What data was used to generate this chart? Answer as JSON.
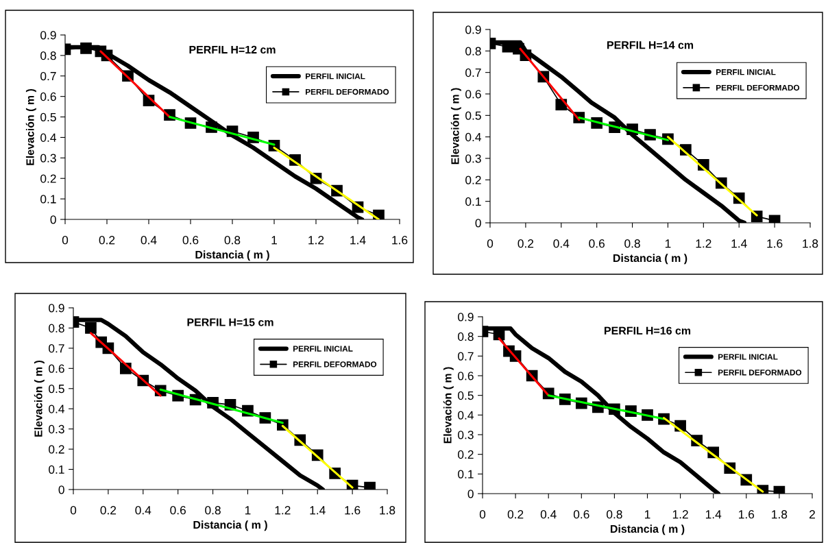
{
  "chart_data": [
    {
      "type": "line",
      "title": "PERFIL H=12 cm",
      "xlabel": "Distancia ( m )",
      "ylabel": "Elevación ( m )",
      "xlim": [
        0,
        1.6
      ],
      "xticks": [
        0,
        0.2,
        0.4,
        0.6,
        0.8,
        1,
        1.2,
        1.4,
        1.6
      ],
      "ylim": [
        0,
        0.9
      ],
      "yticks": [
        0,
        0.1,
        0.2,
        0.3,
        0.4,
        0.5,
        0.6,
        0.7,
        0.8,
        0.9
      ],
      "grid": false,
      "legend": "top right",
      "series": [
        {
          "name": "PERFIL INICIAL",
          "color": "#000000",
          "marker": "none",
          "x": [
            0,
            0.16,
            0.2,
            0.3,
            0.4,
            0.5,
            0.6,
            0.7,
            0.8,
            0.9,
            1.0,
            1.1,
            1.2,
            1.3,
            1.4,
            1.42
          ],
          "values": [
            0.84,
            0.84,
            0.81,
            0.75,
            0.68,
            0.62,
            0.55,
            0.48,
            0.41,
            0.35,
            0.28,
            0.21,
            0.15,
            0.08,
            0.01,
            0
          ]
        },
        {
          "name": "PERFIL DEFORMADO",
          "color": "#000000",
          "marker": "square",
          "x": [
            0,
            0.1,
            0.17,
            0.2,
            0.3,
            0.4,
            0.5,
            0.6,
            0.7,
            0.8,
            0.9,
            1.0,
            1.1,
            1.2,
            1.3,
            1.4,
            1.5
          ],
          "values": [
            0.83,
            0.835,
            0.82,
            0.8,
            0.7,
            0.58,
            0.51,
            0.47,
            0.45,
            0.43,
            0.4,
            0.36,
            0.29,
            0.2,
            0.14,
            0.06,
            0.02
          ]
        },
        {
          "color": "#ff0000",
          "marker": "none",
          "x": [
            0.17,
            0.5
          ],
          "values": [
            0.82,
            0.5
          ]
        },
        {
          "color": "#00ff00",
          "marker": "none",
          "x": [
            0.5,
            1.0
          ],
          "values": [
            0.5,
            0.365
          ]
        },
        {
          "color": "#ffff00",
          "marker": "none",
          "x": [
            1.0,
            1.5
          ],
          "values": [
            0.35,
            0.0
          ]
        }
      ]
    },
    {
      "type": "line",
      "title": "PERFIL H=14 cm",
      "xlabel": "Distancia ( m )",
      "ylabel": "Elevación ( m )",
      "xlim": [
        0,
        1.8
      ],
      "xticks": [
        0,
        0.2,
        0.4,
        0.6,
        0.8,
        1,
        1.2,
        1.4,
        1.6,
        1.8
      ],
      "ylim": [
        0,
        0.9
      ],
      "yticks": [
        0,
        0.1,
        0.2,
        0.3,
        0.4,
        0.5,
        0.6,
        0.7,
        0.8,
        0.9
      ],
      "grid": false,
      "legend": "top right",
      "series": [
        {
          "name": "PERFIL INICIAL",
          "color": "#000000",
          "marker": "none",
          "x": [
            0,
            0.17,
            0.2,
            0.3,
            0.4,
            0.5,
            0.57,
            0.7,
            0.8,
            0.9,
            1.0,
            1.1,
            1.2,
            1.3,
            1.4,
            1.43
          ],
          "values": [
            0.84,
            0.84,
            0.8,
            0.74,
            0.68,
            0.61,
            0.56,
            0.49,
            0.41,
            0.34,
            0.27,
            0.2,
            0.14,
            0.08,
            0.01,
            0
          ]
        },
        {
          "name": "PERFIL DEFORMADO",
          "color": "#000000",
          "marker": "square",
          "x": [
            0,
            0.1,
            0.16,
            0.2,
            0.3,
            0.4,
            0.5,
            0.6,
            0.7,
            0.8,
            0.9,
            1.0,
            1.1,
            1.2,
            1.3,
            1.4,
            1.5,
            1.6
          ],
          "values": [
            0.835,
            0.82,
            0.81,
            0.78,
            0.68,
            0.55,
            0.49,
            0.465,
            0.445,
            0.435,
            0.41,
            0.39,
            0.34,
            0.27,
            0.185,
            0.115,
            0.03,
            0.01
          ]
        },
        {
          "color": "#ff0000",
          "marker": "none",
          "x": [
            0.17,
            0.5
          ],
          "values": [
            0.81,
            0.48
          ]
        },
        {
          "color": "#00ff00",
          "marker": "none",
          "x": [
            0.5,
            1.0
          ],
          "values": [
            0.49,
            0.385
          ]
        },
        {
          "color": "#ffff00",
          "marker": "none",
          "x": [
            1.0,
            1.5
          ],
          "values": [
            0.4,
            0.035
          ]
        }
      ]
    },
    {
      "type": "line",
      "title": "PERFIL H=15 cm",
      "xlabel": "Distancia ( m )",
      "ylabel": "Elevación ( m )",
      "xlim": [
        0,
        1.8
      ],
      "xticks": [
        0,
        0.2,
        0.4,
        0.6,
        0.8,
        1,
        1.2,
        1.4,
        1.6,
        1.8
      ],
      "ylim": [
        0,
        0.9
      ],
      "yticks": [
        0,
        0.1,
        0.2,
        0.3,
        0.4,
        0.5,
        0.6,
        0.7,
        0.8,
        0.9
      ],
      "grid": false,
      "legend": "top right",
      "series": [
        {
          "name": "PERFIL INICIAL",
          "color": "#000000",
          "marker": "none",
          "x": [
            0,
            0.16,
            0.2,
            0.3,
            0.4,
            0.5,
            0.6,
            0.7,
            0.8,
            0.9,
            1.0,
            1.1,
            1.2,
            1.3,
            1.4,
            1.43
          ],
          "values": [
            0.84,
            0.84,
            0.82,
            0.76,
            0.68,
            0.62,
            0.55,
            0.49,
            0.41,
            0.35,
            0.28,
            0.21,
            0.14,
            0.07,
            0.02,
            0
          ]
        },
        {
          "name": "PERFIL DEFORMADO",
          "color": "#000000",
          "marker": "square",
          "x": [
            0,
            0.1,
            0.16,
            0.2,
            0.3,
            0.4,
            0.5,
            0.6,
            0.7,
            0.8,
            0.9,
            1.0,
            1.1,
            1.2,
            1.3,
            1.4,
            1.5,
            1.6,
            1.7
          ],
          "values": [
            0.83,
            0.8,
            0.73,
            0.7,
            0.6,
            0.54,
            0.49,
            0.465,
            0.445,
            0.43,
            0.42,
            0.39,
            0.355,
            0.32,
            0.245,
            0.17,
            0.08,
            0.02,
            0.01
          ]
        },
        {
          "color": "#ff0000",
          "marker": "none",
          "x": [
            0.1,
            0.5
          ],
          "values": [
            0.775,
            0.465
          ]
        },
        {
          "color": "#00ff00",
          "marker": "none",
          "x": [
            0.5,
            1.2
          ],
          "values": [
            0.495,
            0.33
          ]
        },
        {
          "color": "#ffff00",
          "marker": "none",
          "x": [
            1.2,
            1.6
          ],
          "values": [
            0.315,
            0.01
          ]
        }
      ]
    },
    {
      "type": "line",
      "title": "PERFIL H=16 cm",
      "xlabel": "Distancia ( m )",
      "ylabel": "Elevación ( m )",
      "xlim": [
        0,
        2
      ],
      "xticks": [
        0,
        0.2,
        0.4,
        0.6,
        0.8,
        1,
        1.2,
        1.4,
        1.6,
        1.8,
        2
      ],
      "ylim": [
        0,
        0.9
      ],
      "yticks": [
        0,
        0.1,
        0.2,
        0.3,
        0.4,
        0.5,
        0.6,
        0.7,
        0.8,
        0.9
      ],
      "grid": false,
      "legend": "top right",
      "series": [
        {
          "name": "PERFIL INICIAL",
          "color": "#000000",
          "marker": "none",
          "x": [
            0,
            0.17,
            0.2,
            0.3,
            0.4,
            0.5,
            0.6,
            0.7,
            0.8,
            0.9,
            1.0,
            1.1,
            1.2,
            1.3,
            1.4,
            1.43
          ],
          "values": [
            0.84,
            0.84,
            0.81,
            0.74,
            0.69,
            0.62,
            0.57,
            0.5,
            0.41,
            0.34,
            0.28,
            0.21,
            0.16,
            0.09,
            0.02,
            0
          ]
        },
        {
          "name": "PERFIL DEFORMADO",
          "color": "#000000",
          "marker": "square",
          "x": [
            0,
            0.1,
            0.16,
            0.2,
            0.3,
            0.4,
            0.5,
            0.6,
            0.7,
            0.8,
            0.9,
            1.0,
            1.1,
            1.2,
            1.3,
            1.4,
            1.5,
            1.6,
            1.7,
            1.8
          ],
          "values": [
            0.825,
            0.81,
            0.725,
            0.7,
            0.6,
            0.51,
            0.48,
            0.46,
            0.44,
            0.43,
            0.42,
            0.4,
            0.38,
            0.345,
            0.27,
            0.21,
            0.13,
            0.07,
            0.015,
            0.01
          ]
        },
        {
          "color": "#ff0000",
          "marker": "none",
          "x": [
            0.1,
            0.4
          ],
          "values": [
            0.79,
            0.5
          ]
        },
        {
          "color": "#00ff00",
          "marker": "none",
          "x": [
            0.4,
            1.1
          ],
          "values": [
            0.5,
            0.38
          ]
        },
        {
          "color": "#ffff00",
          "marker": "none",
          "x": [
            1.1,
            1.7
          ],
          "values": [
            0.385,
            0.01
          ]
        }
      ]
    }
  ]
}
